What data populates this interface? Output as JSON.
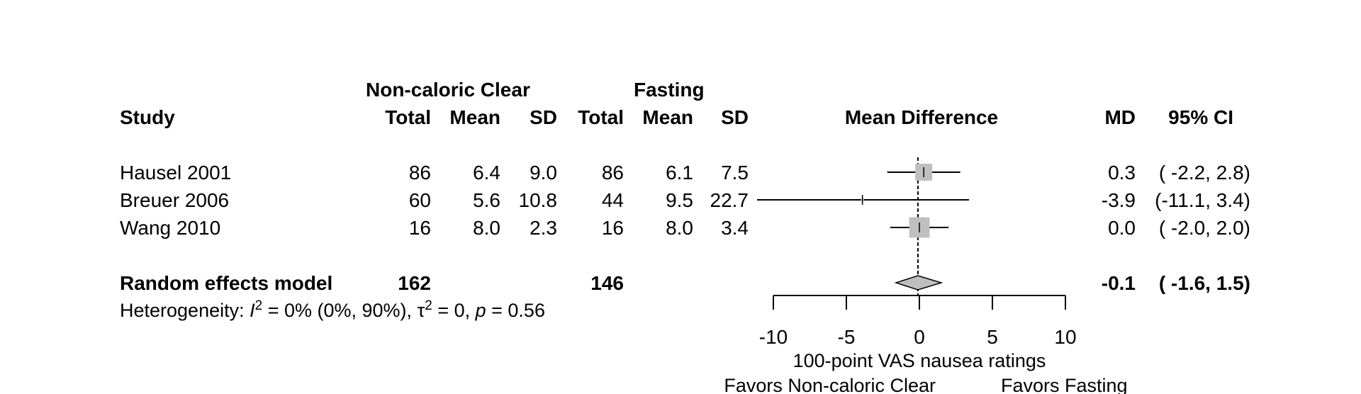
{
  "headers": {
    "group_experimental": "Non-caloric Clear",
    "group_control": "Fasting",
    "study": "Study",
    "total_e": "Total",
    "mean_e": "Mean",
    "sd_e": "SD",
    "total_c": "Total",
    "mean_c": "Mean",
    "sd_c": "SD",
    "plot": "Mean Difference",
    "md": "MD",
    "ci": "95% CI"
  },
  "studies": [
    {
      "name": "Hausel 2001",
      "total_e": "86",
      "mean_e": "6.4",
      "sd_e": "9.0",
      "total_c": "86",
      "mean_c": "6.1",
      "sd_c": "7.5",
      "md_text": "0.3",
      "ci_text": "( -2.2, 2.8)"
    },
    {
      "name": "Breuer 2006",
      "total_e": "60",
      "mean_e": "5.6",
      "sd_e": "10.8",
      "total_c": "44",
      "mean_c": "9.5",
      "sd_c": "22.7",
      "md_text": "-3.9",
      "ci_text": "(-11.1, 3.4)"
    },
    {
      "name": "Wang 2010",
      "total_e": "16",
      "mean_e": "8.0",
      "sd_e": "2.3",
      "total_c": "16",
      "mean_c": "8.0",
      "sd_c": "3.4",
      "md_text": "0.0",
      "ci_text": "( -2.0, 2.0)"
    }
  ],
  "pooled": {
    "label": "Random effects model",
    "total_e": "162",
    "total_c": "146",
    "md_text": "-0.1",
    "ci_text": "( -1.6, 1.5)"
  },
  "heterogeneity": {
    "prefix": "Heterogeneity: ",
    "i2_symbol": "I",
    "i2_exp": "2",
    "i2_value": " = 0% (0%, 90%), ",
    "tau_symbol": "τ",
    "tau_exp": "2",
    "tau_value": " = 0, ",
    "p_symbol": "p",
    "p_value": " = 0.56"
  },
  "axis": {
    "ticks": [
      "-10",
      "-5",
      "0",
      "5",
      "10"
    ],
    "label": "100-point VAS nausea ratings",
    "favors_left": "Favors Non-caloric Clear",
    "favors_right": "Favors Fasting"
  },
  "chart_data": {
    "type": "forest",
    "xlim": [
      -10,
      10
    ],
    "xlabel": "100-point VAS nausea ratings",
    "reference_line": 0,
    "studies": [
      {
        "name": "Hausel 2001",
        "md": 0.3,
        "lower": -2.2,
        "upper": 2.8,
        "weight_rel": 1.0,
        "arrow_left": false
      },
      {
        "name": "Breuer 2006",
        "md": -3.9,
        "lower": -11.1,
        "upper": 3.4,
        "weight_rel": 0.18,
        "arrow_left": true
      },
      {
        "name": "Wang 2010",
        "md": 0.0,
        "lower": -2.0,
        "upper": 2.0,
        "weight_rel": 1.2,
        "arrow_left": false
      }
    ],
    "pooled": {
      "label": "Random effects model",
      "md": -0.1,
      "lower": -1.6,
      "upper": 1.5
    },
    "colors": {
      "square": "#bfbfbf",
      "diamond": "#bfbfbf",
      "line": "#000000"
    }
  }
}
